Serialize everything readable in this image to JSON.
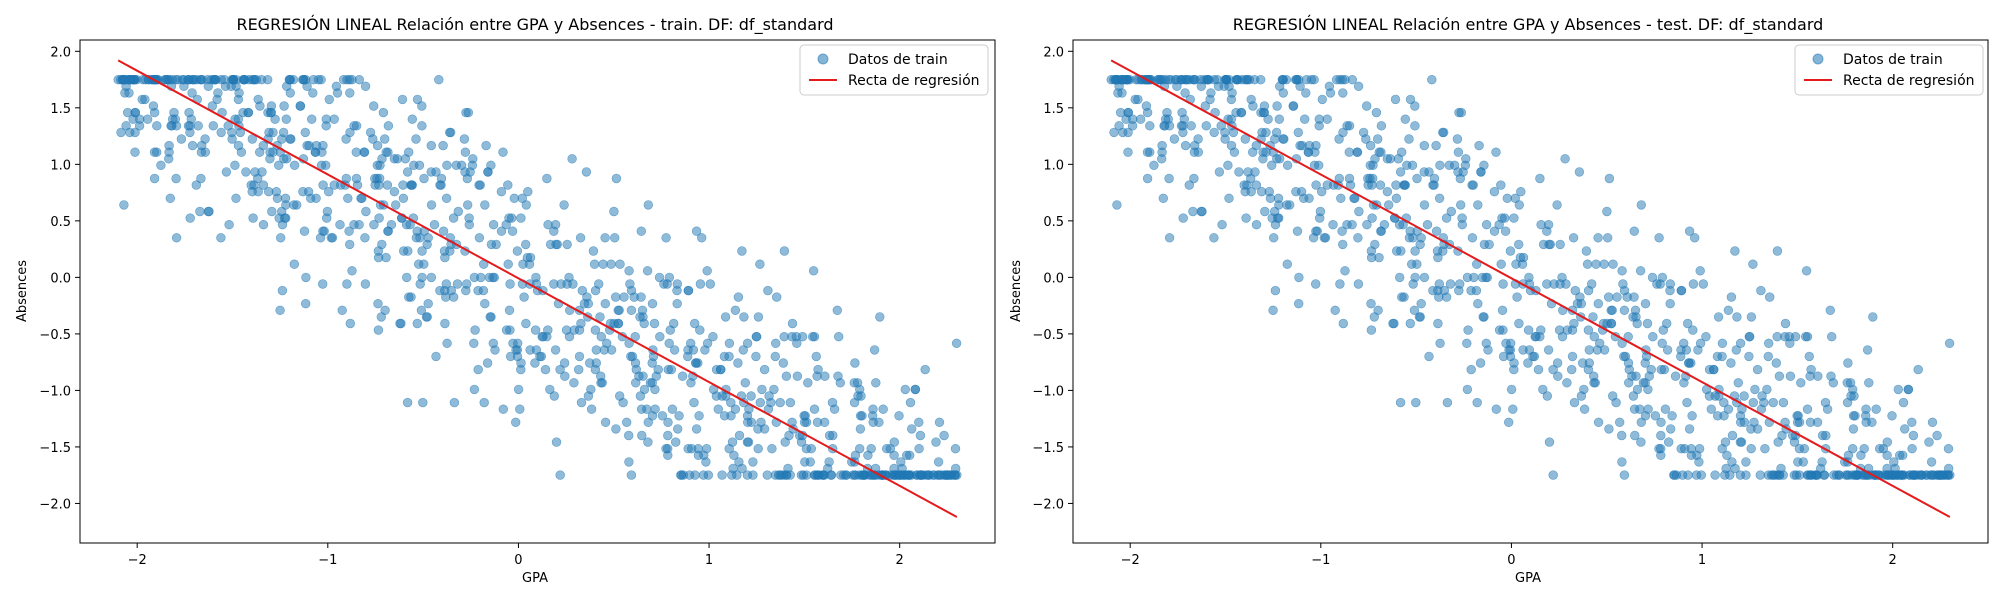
{
  "colors": {
    "points": "#1f77b4",
    "line": "#e41a1c",
    "axis": "#000000",
    "legend_border": "#cccccc"
  },
  "chart_data": [
    {
      "type": "scatter",
      "title": "REGRESIÓN LINEAL Relación entre GPA y Absences - train. DF: df_standard",
      "xlabel": "GPA",
      "ylabel": "Absences",
      "xlim": [
        -2.3,
        2.5
      ],
      "ylim": [
        -2.35,
        2.1
      ],
      "xticks": [
        "−2",
        "−1",
        "0",
        "1",
        "2"
      ],
      "xtick_values": [
        -2,
        -1,
        0,
        1,
        2
      ],
      "yticks": [
        "2.0",
        "1.5",
        "1.0",
        "0.5",
        "0.0",
        "−0.5",
        "−1.0",
        "−1.5",
        "−2.0"
      ],
      "ytick_values": [
        2.0,
        1.5,
        1.0,
        0.5,
        0.0,
        -0.5,
        -1.0,
        -1.5,
        -2.0
      ],
      "legend": {
        "position": "top-right",
        "entries": [
          "Datos de train",
          "Recta de regresión"
        ]
      },
      "regression": {
        "x": [
          -2.1,
          2.3
        ],
        "y": [
          1.92,
          -2.12
        ]
      },
      "scatter_summary": {
        "n_points": 1000,
        "x_range": [
          -2.1,
          2.3
        ],
        "y_range": [
          -1.75,
          1.75
        ],
        "y_band": 0.75
      },
      "grid": false
    },
    {
      "type": "scatter",
      "title": "REGRESIÓN LINEAL Relación entre GPA y Absences - test. DF: df_standard",
      "xlabel": "GPA",
      "ylabel": "Absences",
      "xlim": [
        -2.3,
        2.5
      ],
      "ylim": [
        -2.35,
        2.1
      ],
      "xticks": [
        "−2",
        "−1",
        "0",
        "1",
        "2"
      ],
      "xtick_values": [
        -2,
        -1,
        0,
        1,
        2
      ],
      "yticks": [
        "2.0",
        "1.5",
        "1.0",
        "0.5",
        "0.0",
        "−0.5",
        "−1.0",
        "−1.5",
        "−2.0"
      ],
      "ytick_values": [
        2.0,
        1.5,
        1.0,
        0.5,
        0.0,
        -0.5,
        -1.0,
        -1.5,
        -2.0
      ],
      "legend": {
        "position": "top-right",
        "entries": [
          "Datos de train",
          "Recta de regresión"
        ]
      },
      "regression": {
        "x": [
          -2.1,
          2.3
        ],
        "y": [
          1.92,
          -2.12
        ]
      },
      "scatter_summary": {
        "n_points": 1000,
        "x_range": [
          -2.1,
          2.3
        ],
        "y_range": [
          -1.75,
          1.75
        ],
        "y_band": 0.75
      },
      "grid": false
    }
  ]
}
